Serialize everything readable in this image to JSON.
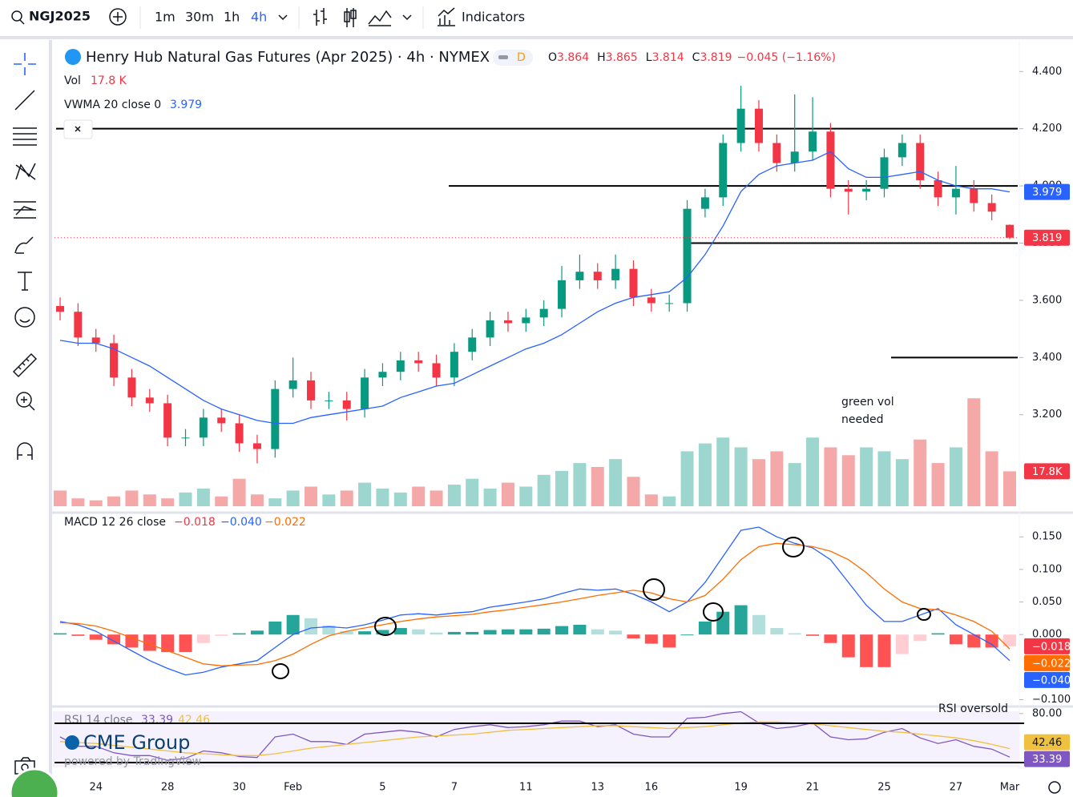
{
  "toolbar": {
    "symbol": "NGJ2025",
    "intervals": [
      "1m",
      "30m",
      "1h",
      "4h"
    ],
    "indicators": "Indicators"
  },
  "legend": {
    "badge": "D",
    "ohlc": [
      [
        "O",
        "3.864"
      ],
      [
        "H",
        "3.865"
      ],
      [
        "L",
        "3.814"
      ],
      [
        "C",
        "3.819"
      ]
    ],
    "change": "−0.045 (−1.16%)"
  },
  "chart_data": [
    {
      "type": "candlestick",
      "title": "Henry Hub Natural Gas Futures (Apr 2025) · 4h · NYMEX",
      "categories": [
        null,
        null,
        "24",
        null,
        null,
        null,
        "28",
        null,
        null,
        null,
        "30",
        null,
        null,
        "Feb",
        null,
        null,
        null,
        null,
        "5",
        null,
        null,
        null,
        "7",
        null,
        null,
        null,
        "11",
        null,
        null,
        null,
        "13",
        null,
        null,
        "16",
        null,
        null,
        null,
        null,
        "19",
        null,
        null,
        null,
        "21",
        null,
        null,
        null,
        "25",
        null,
        null,
        null,
        "27",
        null,
        null,
        "Mar"
      ],
      "open": [
        3.58,
        3.56,
        3.47,
        3.45,
        3.33,
        3.26,
        3.24,
        3.12,
        3.12,
        3.19,
        3.17,
        3.1,
        3.08,
        3.29,
        3.32,
        3.25,
        3.25,
        3.22,
        3.33,
        3.35,
        3.39,
        3.38,
        3.33,
        3.42,
        3.47,
        3.53,
        3.52,
        3.54,
        3.57,
        3.67,
        3.7,
        3.67,
        3.71,
        3.61,
        3.59,
        3.59,
        3.92,
        3.96,
        4.15,
        4.27,
        4.15,
        4.08,
        4.12,
        4.19,
        3.99,
        3.98,
        3.99,
        4.1,
        4.15,
        4.02,
        3.96,
        3.99,
        3.94,
        3.864
      ],
      "high": [
        3.61,
        3.59,
        3.5,
        3.48,
        3.36,
        3.29,
        3.27,
        3.15,
        3.22,
        3.22,
        3.2,
        3.13,
        3.32,
        3.4,
        3.35,
        3.28,
        3.28,
        3.36,
        3.38,
        3.42,
        3.42,
        3.41,
        3.45,
        3.5,
        3.56,
        3.56,
        3.57,
        3.6,
        3.72,
        3.76,
        3.73,
        3.76,
        3.74,
        3.64,
        3.62,
        3.95,
        3.99,
        4.18,
        4.35,
        4.3,
        4.18,
        4.32,
        4.31,
        4.22,
        4.02,
        4.02,
        4.13,
        4.18,
        4.18,
        4.05,
        4.07,
        4.02,
        3.97,
        3.865
      ],
      "low": [
        3.53,
        3.44,
        3.42,
        3.3,
        3.23,
        3.21,
        3.09,
        3.09,
        3.09,
        3.14,
        3.07,
        3.03,
        3.05,
        3.26,
        3.22,
        3.22,
        3.18,
        3.19,
        3.3,
        3.32,
        3.35,
        3.3,
        3.3,
        3.39,
        3.44,
        3.49,
        3.49,
        3.51,
        3.54,
        3.64,
        3.64,
        3.64,
        3.58,
        3.56,
        3.56,
        3.56,
        3.89,
        3.93,
        4.12,
        4.12,
        4.05,
        4.05,
        4.09,
        3.96,
        3.9,
        3.95,
        3.96,
        4.07,
        3.99,
        3.93,
        3.9,
        3.91,
        3.88,
        3.814
      ],
      "close": [
        3.56,
        3.47,
        3.45,
        3.33,
        3.26,
        3.24,
        3.12,
        3.12,
        3.19,
        3.17,
        3.1,
        3.08,
        3.29,
        3.32,
        3.25,
        3.25,
        3.22,
        3.33,
        3.35,
        3.39,
        3.38,
        3.33,
        3.42,
        3.47,
        3.53,
        3.52,
        3.54,
        3.57,
        3.67,
        3.7,
        3.67,
        3.71,
        3.61,
        3.59,
        3.59,
        3.92,
        3.96,
        4.15,
        4.27,
        4.15,
        4.08,
        4.12,
        4.19,
        3.99,
        3.98,
        3.99,
        4.1,
        4.15,
        4.02,
        3.96,
        3.99,
        3.94,
        3.91,
        3.819
      ],
      "up_color": "#089981",
      "down_color": "#f23645",
      "series": [
        {
          "name": "VWMA 20 close 0",
          "color": "#2962ff",
          "last_label": "3.979",
          "values": [
            3.46,
            3.45,
            3.45,
            3.43,
            3.4,
            3.37,
            3.33,
            3.29,
            3.25,
            3.22,
            3.2,
            3.18,
            3.17,
            3.17,
            3.19,
            3.2,
            3.21,
            3.22,
            3.23,
            3.26,
            3.28,
            3.3,
            3.31,
            3.34,
            3.37,
            3.4,
            3.43,
            3.45,
            3.48,
            3.52,
            3.56,
            3.59,
            3.61,
            3.62,
            3.63,
            3.68,
            3.76,
            3.86,
            3.98,
            4.04,
            4.07,
            4.08,
            4.09,
            4.12,
            4.06,
            4.03,
            4.03,
            4.04,
            4.05,
            4.02,
            4.0,
            3.99,
            3.99,
            3.979
          ]
        }
      ],
      "last_label": "3.819",
      "levels": [
        4.2,
        4.0,
        3.8,
        3.4
      ],
      "ylim": [
        2.88,
        4.51
      ],
      "yticks": [
        {
          "value": 4.4,
          "label": "4.400"
        },
        {
          "value": 4.2,
          "label": "4.200"
        },
        {
          "value": 4.0,
          "label": "4.000"
        },
        {
          "value": 3.8,
          "label": "3.800"
        },
        {
          "value": 3.6,
          "label": "3.600"
        },
        {
          "value": 3.4,
          "label": "3.400"
        },
        {
          "value": 3.2,
          "label": "3.200"
        }
      ],
      "annotation": [
        "green vol",
        "needed"
      ]
    },
    {
      "type": "bar",
      "name": "Vol",
      "value_label": "17.8 K",
      "tag_label": "17.8K",
      "up_color": "#9dd5cf",
      "down_color": "#f5a8a8",
      "ylim": [
        0,
        60
      ],
      "values": [
        8,
        4,
        3,
        5,
        8,
        6,
        4,
        7,
        9,
        5,
        14,
        6,
        4,
        8,
        10,
        6,
        8,
        12,
        9,
        7,
        10,
        8,
        11,
        14,
        9,
        12,
        10,
        16,
        18,
        22,
        20,
        24,
        15,
        6,
        5,
        28,
        32,
        35,
        30,
        24,
        28,
        22,
        35,
        30,
        26,
        30,
        28,
        24,
        34,
        22,
        30,
        55,
        28,
        17.8
      ]
    },
    {
      "type": "macd",
      "title": "MACD 12 26 close",
      "ylim": [
        -0.108,
        0.181
      ],
      "yticks": [
        {
          "value": 0.15,
          "label": "0.150"
        },
        {
          "value": 0.1,
          "label": "0.100"
        },
        {
          "value": 0.05,
          "label": "0.050"
        },
        {
          "value": 0,
          "label": "0.000"
        },
        {
          "value": -0.1,
          "label": "−0.100"
        }
      ],
      "histogram": {
        "last_label": "−0.018",
        "colors": [
          "#26a69a",
          "#b2dfdb",
          "#ffcdd2",
          "#ff5252"
        ],
        "values": [
          0.002,
          -0.002,
          -0.008,
          -0.015,
          -0.02,
          -0.025,
          -0.027,
          -0.027,
          -0.013,
          -0.002,
          0.002,
          0.006,
          0.02,
          0.03,
          0.025,
          0.014,
          0.005,
          0.005,
          0.007,
          0.01,
          0.008,
          0.003,
          0.004,
          0.004,
          0.007,
          0.008,
          0.008,
          0.009,
          0.013,
          0.015,
          0.008,
          0.006,
          -0.006,
          -0.014,
          -0.02,
          0.0,
          0.02,
          0.035,
          0.045,
          0.03,
          0.01,
          0.002,
          -0.002,
          -0.013,
          -0.035,
          -0.05,
          -0.05,
          -0.03,
          -0.01,
          0.002,
          -0.015,
          -0.02,
          -0.02,
          -0.018
        ]
      },
      "series": [
        {
          "color": "#2962ff",
          "last_label": "−0.040",
          "values": [
            0.02,
            0.015,
            0.005,
            -0.01,
            -0.025,
            -0.04,
            -0.052,
            -0.062,
            -0.058,
            -0.05,
            -0.045,
            -0.04,
            -0.02,
            0.0,
            0.01,
            0.012,
            0.01,
            0.015,
            0.022,
            0.03,
            0.032,
            0.03,
            0.033,
            0.035,
            0.042,
            0.046,
            0.05,
            0.055,
            0.063,
            0.07,
            0.068,
            0.07,
            0.062,
            0.05,
            0.035,
            0.05,
            0.08,
            0.12,
            0.16,
            0.165,
            0.15,
            0.14,
            0.133,
            0.115,
            0.08,
            0.045,
            0.02,
            0.02,
            0.03,
            0.04,
            0.015,
            0.0,
            -0.015,
            -0.04
          ]
        },
        {
          "color": "#ff6d00",
          "last_label": "−0.022",
          "values": [
            0.018,
            0.017,
            0.013,
            0.005,
            -0.005,
            -0.015,
            -0.025,
            -0.035,
            -0.045,
            -0.048,
            -0.047,
            -0.046,
            -0.04,
            -0.03,
            -0.015,
            -0.002,
            0.005,
            0.01,
            0.015,
            0.02,
            0.024,
            0.027,
            0.029,
            0.031,
            0.035,
            0.038,
            0.042,
            0.046,
            0.05,
            0.055,
            0.06,
            0.064,
            0.068,
            0.064,
            0.055,
            0.05,
            0.06,
            0.085,
            0.115,
            0.135,
            0.14,
            0.138,
            0.135,
            0.128,
            0.115,
            0.095,
            0.07,
            0.05,
            0.04,
            0.038,
            0.03,
            0.02,
            0.005,
            -0.022
          ]
        }
      ]
    },
    {
      "type": "rsi",
      "title": "RSI 14 close",
      "ylim": [
        25,
        85
      ],
      "yticks": [
        {
          "value": 80,
          "label": "80.00"
        }
      ],
      "series": [
        {
          "color": "#7e57c2",
          "last_label": "33.39",
          "values": [
            55,
            45,
            45,
            38,
            35,
            35,
            30,
            32,
            40,
            38,
            34,
            33,
            55,
            58,
            50,
            50,
            47,
            58,
            60,
            62,
            60,
            55,
            63,
            66,
            68,
            65,
            66,
            68,
            72,
            72,
            66,
            68,
            58,
            55,
            55,
            75,
            76,
            80,
            82,
            70,
            64,
            66,
            70,
            55,
            52,
            53,
            60,
            64,
            54,
            48,
            52,
            45,
            42,
            33.39
          ]
        },
        {
          "color": "#f0c040",
          "last_label": "42.46",
          "values": [
            50,
            49,
            48,
            46,
            44,
            42,
            40,
            38,
            37,
            36,
            35,
            35,
            37,
            40,
            43,
            45,
            47,
            49,
            51,
            53,
            55,
            56,
            57,
            58,
            60,
            62,
            63,
            64,
            65,
            66,
            67,
            67,
            66,
            65,
            64,
            65,
            66,
            68,
            70,
            71,
            71,
            70,
            69,
            67,
            65,
            63,
            61,
            60,
            58,
            56,
            54,
            51,
            47,
            42.46
          ]
        }
      ],
      "annotation": "RSI oversold"
    }
  ],
  "overlay": {
    "logo": "CME Group",
    "powered": "powered by TradingView"
  }
}
